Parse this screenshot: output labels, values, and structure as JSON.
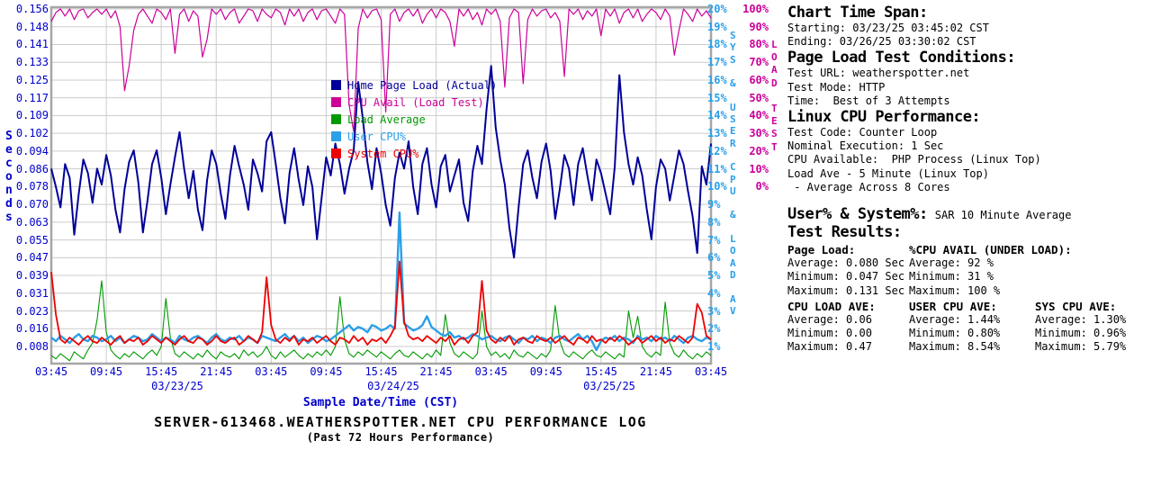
{
  "colors": {
    "axis_blue": "#0000CC",
    "navy": "#000099",
    "magenta": "#CC0099",
    "green": "#009900",
    "cyan": "#2B9FE8",
    "red": "#EE0000",
    "grid": "#CCCCCC",
    "border": "#A6A6A6"
  },
  "chart_data": {
    "type": "line",
    "title": "SERVER-613468.WEATHERSPOTTER.NET CPU PERFORMANCE LOG",
    "subtitle": "(Past 72 Hours Performance)",
    "xlabel": "Sample Date/Time (CST)",
    "ylabel_left": "Seconds",
    "ylabel_right_inner": "SYS & USER CPU & LOAD AV",
    "ylabel_right_outer": "LOAD TEST",
    "x_ticks": [
      "03:45",
      "09:45",
      "15:45",
      "21:45",
      "03:45",
      "09:45",
      "15:45",
      "21:45",
      "03:45",
      "09:45",
      "15:45",
      "21:45",
      "03:45"
    ],
    "x_dates": [
      "03/23/25",
      "03/24/25",
      "03/25/25"
    ],
    "y_ticks_seconds": [
      "0.156",
      "0.148",
      "0.141",
      "0.133",
      "0.125",
      "0.117",
      "0.109",
      "0.102",
      "0.094",
      "0.086",
      "0.078",
      "0.070",
      "0.063",
      "0.055",
      "0.047",
      "0.039",
      "0.031",
      "0.023",
      "0.016",
      "0.008"
    ],
    "y_ticks_pct": [
      "20%",
      "19%",
      "18%",
      "17%",
      "16%",
      "15%",
      "14%",
      "13%",
      "12%",
      "11%",
      "10%",
      "9%",
      "8%",
      "7%",
      "6%",
      "5%",
      "4%",
      "3%",
      "2%",
      "1%"
    ],
    "y_ticks_load_test": [
      "100%",
      "90%",
      "80%",
      "70%",
      "60%",
      "50%",
      "40%",
      "30%",
      "20%",
      "10%",
      "0%"
    ],
    "axis_ranges": {
      "seconds": [
        0.008,
        0.156
      ],
      "cpu_pct": [
        1,
        20
      ],
      "load_test_pct": [
        0,
        100
      ]
    },
    "grid": true,
    "legend_position": "inside-top-center",
    "series": [
      {
        "name": "Home Page Load (Actual)",
        "color": "#000099",
        "axis": "seconds",
        "values": [
          0.086,
          0.078,
          0.069,
          0.088,
          0.082,
          0.057,
          0.075,
          0.09,
          0.084,
          0.071,
          0.086,
          0.079,
          0.092,
          0.083,
          0.068,
          0.058,
          0.077,
          0.089,
          0.094,
          0.08,
          0.058,
          0.072,
          0.088,
          0.094,
          0.082,
          0.066,
          0.079,
          0.091,
          0.102,
          0.086,
          0.073,
          0.085,
          0.068,
          0.059,
          0.081,
          0.094,
          0.088,
          0.075,
          0.064,
          0.083,
          0.096,
          0.087,
          0.079,
          0.068,
          0.09,
          0.084,
          0.076,
          0.098,
          0.102,
          0.088,
          0.073,
          0.062,
          0.084,
          0.095,
          0.081,
          0.07,
          0.087,
          0.078,
          0.055,
          0.073,
          0.091,
          0.083,
          0.097,
          0.088,
          0.075,
          0.086,
          0.094,
          0.124,
          0.108,
          0.089,
          0.077,
          0.095,
          0.084,
          0.07,
          0.061,
          0.082,
          0.093,
          0.086,
          0.098,
          0.078,
          0.066,
          0.088,
          0.095,
          0.079,
          0.069,
          0.087,
          0.092,
          0.076,
          0.083,
          0.09,
          0.071,
          0.063,
          0.085,
          0.096,
          0.088,
          0.112,
          0.131,
          0.104,
          0.09,
          0.079,
          0.06,
          0.047,
          0.069,
          0.088,
          0.094,
          0.082,
          0.073,
          0.089,
          0.097,
          0.085,
          0.064,
          0.077,
          0.092,
          0.086,
          0.07,
          0.088,
          0.095,
          0.083,
          0.072,
          0.09,
          0.084,
          0.075,
          0.066,
          0.087,
          0.127,
          0.102,
          0.088,
          0.079,
          0.091,
          0.083,
          0.068,
          0.055,
          0.078,
          0.09,
          0.086,
          0.072,
          0.083,
          0.094,
          0.088,
          0.076,
          0.065,
          0.049,
          0.087,
          0.079,
          0.097
        ]
      },
      {
        "name": "CPU Avail (Load Test)",
        "color": "#CC0099",
        "axis": "load_test",
        "values": [
          93,
          98,
          100,
          96,
          100,
          94,
          99,
          100,
          95,
          98,
          100,
          97,
          100,
          95,
          99,
          90,
          54,
          68,
          88,
          97,
          100,
          96,
          92,
          100,
          98,
          94,
          100,
          75,
          97,
          100,
          93,
          99,
          96,
          73,
          83,
          100,
          97,
          100,
          94,
          98,
          100,
          92,
          96,
          100,
          99,
          93,
          100,
          97,
          95,
          100,
          98,
          91,
          100,
          96,
          100,
          93,
          98,
          100,
          94,
          99,
          100,
          96,
          92,
          100,
          97,
          46,
          31,
          89,
          100,
          95,
          99,
          100,
          94,
          42,
          97,
          100,
          93,
          98,
          100,
          96,
          100,
          92,
          97,
          100,
          95,
          100,
          98,
          93,
          79,
          100,
          96,
          100,
          94,
          98,
          91,
          100,
          97,
          100,
          93,
          56,
          95,
          100,
          98,
          58,
          94,
          100,
          96,
          99,
          100,
          95,
          98,
          93,
          62,
          100,
          97,
          100,
          94,
          99,
          96,
          100,
          85,
          100,
          96,
          100,
          92,
          98,
          100,
          95,
          100,
          93,
          97,
          100,
          98,
          94,
          100,
          96,
          74,
          88,
          100,
          97,
          93,
          100,
          96,
          99,
          95
        ]
      },
      {
        "name": "Load Average",
        "color": "#009900",
        "axis": "load",
        "values": [
          0.05,
          0.03,
          0.06,
          0.04,
          0.02,
          0.07,
          0.05,
          0.03,
          0.08,
          0.12,
          0.25,
          0.47,
          0.18,
          0.08,
          0.05,
          0.03,
          0.06,
          0.04,
          0.07,
          0.05,
          0.03,
          0.06,
          0.08,
          0.05,
          0.1,
          0.37,
          0.15,
          0.06,
          0.04,
          0.07,
          0.05,
          0.03,
          0.06,
          0.04,
          0.08,
          0.05,
          0.03,
          0.07,
          0.05,
          0.04,
          0.06,
          0.03,
          0.08,
          0.05,
          0.07,
          0.04,
          0.06,
          0.1,
          0.05,
          0.03,
          0.07,
          0.04,
          0.06,
          0.08,
          0.05,
          0.03,
          0.06,
          0.04,
          0.07,
          0.05,
          0.08,
          0.05,
          0.1,
          0.38,
          0.14,
          0.06,
          0.04,
          0.07,
          0.05,
          0.08,
          0.06,
          0.04,
          0.07,
          0.05,
          0.03,
          0.06,
          0.08,
          0.05,
          0.04,
          0.07,
          0.05,
          0.03,
          0.06,
          0.04,
          0.08,
          0.05,
          0.28,
          0.12,
          0.06,
          0.04,
          0.07,
          0.05,
          0.03,
          0.06,
          0.3,
          0.1,
          0.05,
          0.07,
          0.04,
          0.06,
          0.03,
          0.08,
          0.05,
          0.04,
          0.07,
          0.05,
          0.03,
          0.06,
          0.04,
          0.08,
          0.33,
          0.13,
          0.06,
          0.04,
          0.07,
          0.05,
          0.03,
          0.06,
          0.08,
          0.05,
          0.04,
          0.07,
          0.05,
          0.03,
          0.06,
          0.04,
          0.3,
          0.15,
          0.27,
          0.1,
          0.06,
          0.04,
          0.07,
          0.05,
          0.35,
          0.12,
          0.06,
          0.04,
          0.08,
          0.05,
          0.03,
          0.06,
          0.04,
          0.07,
          0.05
        ]
      },
      {
        "name": "User CPU%",
        "color": "#2B9FE8",
        "axis": "cpu_pct",
        "values": [
          1.5,
          1.3,
          1.6,
          1.4,
          1.2,
          1.5,
          1.7,
          1.4,
          1.3,
          1.6,
          1.5,
          1.3,
          1.4,
          1.6,
          1.3,
          1.5,
          1.2,
          1.4,
          1.6,
          1.5,
          1.3,
          1.4,
          1.7,
          1.5,
          1.3,
          1.5,
          1.4,
          1.2,
          1.6,
          1.4,
          1.3,
          1.5,
          1.6,
          1.4,
          1.2,
          1.5,
          1.7,
          1.4,
          1.3,
          1.5,
          1.4,
          1.6,
          1.3,
          1.5,
          1.4,
          1.2,
          1.6,
          1.5,
          1.4,
          1.3,
          1.5,
          1.7,
          1.4,
          1.6,
          1.3,
          1.5,
          1.2,
          1.4,
          1.6,
          1.5,
          1.3,
          1.4,
          1.6,
          1.8,
          2.0,
          2.2,
          1.9,
          2.1,
          2.0,
          1.8,
          2.2,
          2.1,
          1.9,
          2.0,
          2.2,
          2.0,
          8.54,
          2.3,
          2.1,
          1.9,
          2.0,
          2.2,
          2.7,
          2.1,
          1.9,
          1.7,
          1.6,
          1.8,
          1.5,
          1.6,
          1.4,
          1.5,
          1.7,
          1.6,
          1.4,
          1.5,
          1.6,
          1.4,
          1.3,
          1.5,
          1.6,
          1.4,
          1.2,
          1.5,
          1.4,
          1.6,
          1.3,
          1.5,
          1.4,
          1.2,
          1.5,
          1.6,
          1.4,
          1.3,
          1.5,
          1.7,
          1.4,
          1.6,
          1.3,
          0.8,
          1.3,
          1.5,
          1.4,
          1.6,
          1.3,
          1.5,
          1.4,
          1.2,
          1.6,
          1.4,
          1.5,
          1.3,
          1.6,
          1.4,
          1.5,
          1.3,
          1.6,
          1.4,
          1.2,
          1.5,
          1.6,
          1.4,
          1.3,
          1.5,
          1.4
        ]
      },
      {
        "name": "System CPU%",
        "color": "#EE0000",
        "axis": "cpu_pct",
        "values": [
          5.2,
          2.8,
          1.4,
          1.2,
          1.5,
          1.3,
          1.1,
          1.4,
          1.6,
          1.3,
          1.2,
          1.5,
          1.3,
          1.1,
          1.4,
          1.6,
          1.2,
          1.4,
          1.3,
          1.5,
          1.1,
          1.3,
          1.6,
          1.4,
          1.2,
          1.5,
          1.3,
          1.1,
          1.4,
          1.6,
          1.3,
          1.2,
          1.5,
          1.4,
          1.1,
          1.3,
          1.6,
          1.3,
          1.2,
          1.4,
          1.5,
          1.1,
          1.3,
          1.6,
          1.4,
          1.2,
          1.8,
          4.9,
          2.2,
          1.4,
          1.2,
          1.5,
          1.3,
          1.6,
          1.1,
          1.4,
          1.3,
          1.5,
          1.2,
          1.4,
          1.6,
          1.3,
          1.1,
          1.5,
          1.4,
          1.2,
          1.6,
          1.3,
          1.5,
          1.1,
          1.4,
          1.3,
          1.5,
          1.2,
          1.6,
          2.1,
          5.79,
          2.4,
          1.6,
          1.4,
          1.5,
          1.3,
          1.6,
          1.4,
          1.2,
          1.5,
          1.3,
          1.6,
          1.1,
          1.4,
          1.5,
          1.2,
          1.6,
          1.8,
          4.7,
          1.9,
          1.4,
          1.2,
          1.5,
          1.3,
          1.6,
          1.1,
          1.4,
          1.5,
          1.3,
          1.2,
          1.6,
          1.4,
          1.3,
          1.5,
          1.2,
          1.4,
          1.6,
          1.3,
          1.1,
          1.5,
          1.4,
          1.2,
          1.6,
          1.3,
          1.4,
          1.2,
          1.5,
          1.3,
          1.6,
          1.4,
          1.1,
          1.3,
          1.5,
          1.2,
          1.4,
          1.6,
          1.3,
          1.5,
          1.2,
          1.4,
          1.3,
          1.6,
          1.4,
          1.2,
          1.5,
          3.4,
          2.9,
          1.6,
          1.4
        ]
      }
    ]
  },
  "info": {
    "time_span": {
      "heading": "Chart Time Span:",
      "lines": [
        "Starting: 03/23/25 03:45:02 CST",
        "Ending: 03/26/25 03:30:02 CST"
      ]
    },
    "conditions": {
      "heading": "Page Load Test Conditions:",
      "lines": [
        "Test URL: weatherspotter.net",
        "Test Mode: HTTP",
        "Time:  Best of 3 Attempts"
      ]
    },
    "linux_cpu": {
      "heading": "Linux CPU Performance:",
      "lines": [
        "Test Code: Counter Loop",
        "Nominal Execution: 1 Sec",
        "CPU Available:  PHP Process (Linux Top)",
        "Load Ave - 5 Minute (Linux Top)",
        " - Average Across 8 Cores"
      ]
    },
    "user_system": {
      "heading": "User% & System%:",
      "text": "SAR 10 Minute Average"
    },
    "results": {
      "heading": "Test Results:",
      "row1": [
        {
          "title": "Page Load:",
          "rows": [
            "Average: 0.080 Sec",
            "Minimum: 0.047 Sec",
            "Maximum: 0.131 Sec"
          ]
        },
        {
          "title": "%CPU AVAIL (UNDER LOAD):",
          "rows": [
            "Average: 92 %",
            "Minimum: 31 %",
            "Maximum: 100 %"
          ]
        }
      ],
      "row2": [
        {
          "title": "CPU LOAD AVE:",
          "rows": [
            "Average: 0.06",
            "Minimum: 0.00",
            "Maximum: 0.47"
          ]
        },
        {
          "title": "USER CPU AVE:",
          "rows": [
            "Average: 1.44%",
            "Minimum: 0.80%",
            "Maximum: 8.54%"
          ]
        },
        {
          "title": "SYS CPU AVE:",
          "rows": [
            "Average: 1.30%",
            "Minimum: 0.96%",
            "Maximum: 5.79%"
          ]
        }
      ]
    }
  }
}
